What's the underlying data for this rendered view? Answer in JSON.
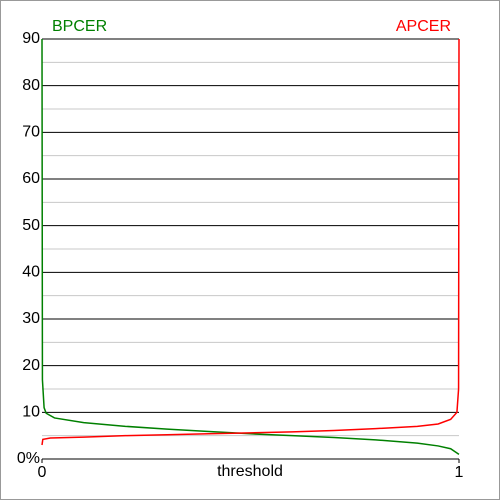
{
  "chart_data": {
    "type": "line",
    "x_label": "threshold",
    "series": [
      {
        "name": "BPCER",
        "color": "#008000",
        "x": [
          0,
          0.001,
          0.005,
          0.01,
          0.03,
          0.1,
          0.2,
          0.3,
          0.4,
          0.5,
          0.6,
          0.7,
          0.8,
          0.9,
          0.95,
          0.98,
          1
        ],
        "values": [
          90,
          17,
          11,
          9.8,
          8.8,
          7.8,
          7,
          6.4,
          5.9,
          5.4,
          5,
          4.6,
          4.1,
          3.4,
          2.8,
          2.2,
          1
        ]
      },
      {
        "name": "APCER",
        "color": "#ff0000",
        "x": [
          0,
          0.002,
          0.02,
          0.1,
          0.2,
          0.3,
          0.4,
          0.5,
          0.6,
          0.7,
          0.8,
          0.9,
          0.95,
          0.98,
          0.995,
          0.999,
          1
        ],
        "values": [
          3,
          4.2,
          4.5,
          4.7,
          5,
          5.2,
          5.4,
          5.6,
          5.8,
          6.1,
          6.5,
          7,
          7.5,
          8.5,
          10,
          15,
          90
        ]
      }
    ],
    "xlim": [
      0,
      1
    ],
    "xticks": [
      0,
      1
    ],
    "ylim": [
      0,
      90
    ],
    "yticks": [
      {
        "value": 0,
        "label": "0%"
      },
      10,
      20,
      30,
      40,
      50,
      60,
      70,
      80,
      90
    ],
    "minor_yticks": [
      5,
      15,
      25,
      35,
      45,
      55,
      65,
      75,
      85
    ],
    "grid": true
  }
}
